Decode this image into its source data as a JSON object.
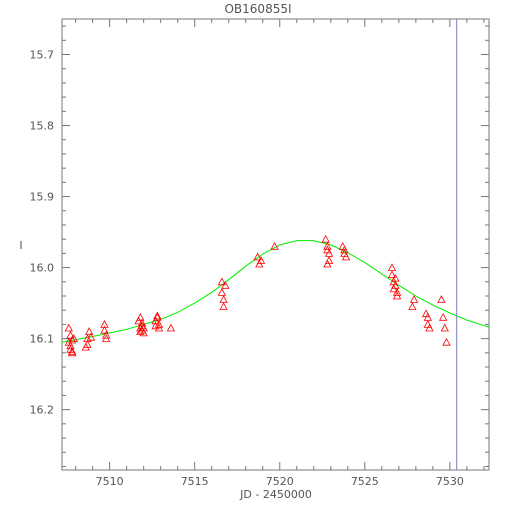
{
  "chart_data": {
    "type": "scatter",
    "title": "OB160855I",
    "xlabel": "JD - 2450000",
    "ylabel": "I",
    "xlim": [
      7507.2,
      7532.3
    ],
    "ylim": [
      16.285,
      15.65
    ],
    "y_inverted": true,
    "grid": false,
    "x_ticks": [
      {
        "value": 7510,
        "label": "7510"
      },
      {
        "value": 7515,
        "label": "7515"
      },
      {
        "value": 7520,
        "label": "7520"
      },
      {
        "value": 7525,
        "label": "7525"
      },
      {
        "value": 7530,
        "label": "7530"
      }
    ],
    "y_ticks": [
      {
        "value": 15.7,
        "label": "15.7"
      },
      {
        "value": 15.8,
        "label": "15.8"
      },
      {
        "value": 15.9,
        "label": "15.9"
      },
      {
        "value": 16.0,
        "label": "16.0"
      },
      {
        "value": 16.1,
        "label": "16.1"
      },
      {
        "value": 16.2,
        "label": "16.2"
      }
    ],
    "series": [
      {
        "marker": "triangle",
        "color": "#ff0000",
        "x": [
          7507.6,
          7507.6,
          7507.7,
          7507.7,
          7507.7,
          7507.8,
          7507.8,
          7507.8,
          7507.9,
          7508.6,
          7508.7,
          7508.7,
          7508.8,
          7508.9,
          7509.7,
          7509.7,
          7509.8,
          7509.8,
          7511.7,
          7511.8,
          7511.8,
          7511.8,
          7511.9,
          7511.9,
          7511.9,
          7512.0,
          7512.0,
          7512.7,
          7512.7,
          7512.8,
          7512.8,
          7512.9,
          7512.9,
          7513.6,
          7516.6,
          7516.6,
          7516.7,
          7516.7,
          7516.8,
          7518.7,
          7518.8,
          7518.9,
          7519.7,
          7522.7,
          7522.8,
          7522.8,
          7522.8,
          7522.9,
          7522.9,
          7523.7,
          7523.8,
          7523.8,
          7523.9,
          7526.6,
          7526.6,
          7526.7,
          7526.7,
          7526.8,
          7526.8,
          7526.9,
          7526.9,
          7527.8,
          7527.9,
          7528.6,
          7528.7,
          7528.7,
          7528.8,
          7529.5,
          7529.6,
          7529.7,
          7529.8
        ],
        "y": [
          16.085,
          16.105,
          16.115,
          16.095,
          16.11,
          16.102,
          16.12,
          16.118,
          16.1,
          16.112,
          16.1,
          16.108,
          16.09,
          16.098,
          16.08,
          16.088,
          16.095,
          16.1,
          16.075,
          16.085,
          16.09,
          16.07,
          16.082,
          16.088,
          16.078,
          16.092,
          16.085,
          16.075,
          16.082,
          16.068,
          16.07,
          16.08,
          16.085,
          16.085,
          16.02,
          16.035,
          16.045,
          16.055,
          16.025,
          15.985,
          15.995,
          15.99,
          15.97,
          15.96,
          15.97,
          15.975,
          15.995,
          15.98,
          15.99,
          15.97,
          15.975,
          15.98,
          15.985,
          16.0,
          16.01,
          16.02,
          16.03,
          16.015,
          16.025,
          16.035,
          16.04,
          16.055,
          16.045,
          16.065,
          16.07,
          16.08,
          16.085,
          16.045,
          16.07,
          16.085,
          16.105
        ]
      },
      {
        "name": "",
        "type": "line",
        "color": "#00ee00",
        "x": [
          7507.2,
          7509,
          7511,
          7513,
          7514,
          7515,
          7516,
          7517,
          7518,
          7519,
          7520,
          7521,
          7522,
          7523,
          7524,
          7525,
          7526,
          7527,
          7528,
          7529,
          7530,
          7531,
          7532.3
        ],
        "y": [
          16.105,
          16.097,
          16.087,
          16.073,
          16.063,
          16.05,
          16.035,
          16.017,
          15.998,
          15.981,
          15.968,
          15.962,
          15.962,
          15.968,
          15.979,
          15.993,
          16.009,
          16.025,
          16.04,
          16.053,
          16.064,
          16.074,
          16.084
        ]
      }
    ],
    "reference_line": {
      "x": 7530.4,
      "color": "#8080c0"
    }
  }
}
